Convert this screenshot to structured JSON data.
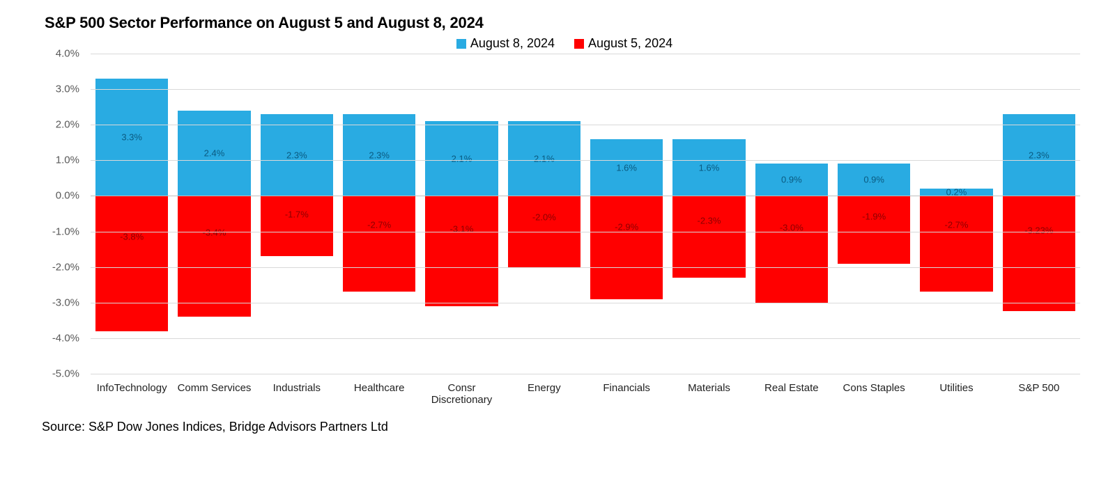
{
  "chart": {
    "type": "bar",
    "title": "S&P 500 Sector Performance on August 5 and August 8, 2024",
    "title_fontsize": 22,
    "title_fontweight": 700,
    "background_color": "#ffffff",
    "grid_color": "#d9d9d9",
    "text_color": "#000000",
    "axis_label_color": "#595959",
    "legend_position": "top-center",
    "legend_fontsize": 18,
    "x_label_fontsize": 15,
    "y_label_fontsize": 15,
    "bar_label_fontsize": 13,
    "bar_group_inner_padding_pct": 6,
    "ylim": [
      -5.0,
      4.0
    ],
    "ytick_step": 1.0,
    "yticks": [
      4.0,
      3.0,
      2.0,
      1.0,
      0.0,
      -1.0,
      -2.0,
      -3.0,
      -4.0,
      -5.0
    ],
    "ytick_labels": [
      "4.0%",
      "3.0%",
      "2.0%",
      "1.0%",
      "0.0%",
      "-1.0%",
      "-2.0%",
      "-3.0%",
      "-4.0%",
      "-5.0%"
    ],
    "categories": [
      "InfoTechnology",
      "Comm Services",
      "Industrials",
      "Healthcare",
      "Consr\nDiscretionary",
      "Energy",
      "Financials",
      "Materials",
      "Real Estate",
      "Cons Staples",
      "Utilities",
      "S&P 500"
    ],
    "series": [
      {
        "name": "August 8, 2024",
        "color": "#29abe2",
        "label_color": "#0a5a80",
        "values": [
          3.3,
          2.4,
          2.3,
          2.3,
          2.1,
          2.1,
          1.6,
          1.6,
          0.9,
          0.9,
          0.2,
          2.3
        ],
        "value_labels": [
          "3.3%",
          "2.4%",
          "2.3%",
          "2.3%",
          "2.1%",
          "2.1%",
          "1.6%",
          "1.6%",
          "0.9%",
          "0.9%",
          "0.2%",
          "2.3%"
        ]
      },
      {
        "name": "August 5, 2024",
        "color": "#ff0000",
        "label_color": "#8b0000",
        "values": [
          -3.8,
          -3.4,
          -1.7,
          -2.7,
          -3.1,
          -2.0,
          -2.9,
          -2.3,
          -3.0,
          -1.9,
          -2.7,
          -3.23
        ],
        "value_labels": [
          "-3.8%",
          "-3.4%",
          "-1.7%",
          "-2.7%",
          "-3.1%",
          "-2.0%",
          "-2.9%",
          "-2.3%",
          "-3.0%",
          "-1.9%",
          "-2.7%",
          "-3.23%"
        ]
      }
    ],
    "source": "Source: S&P Dow Jones Indices, Bridge Advisors Partners Ltd"
  }
}
